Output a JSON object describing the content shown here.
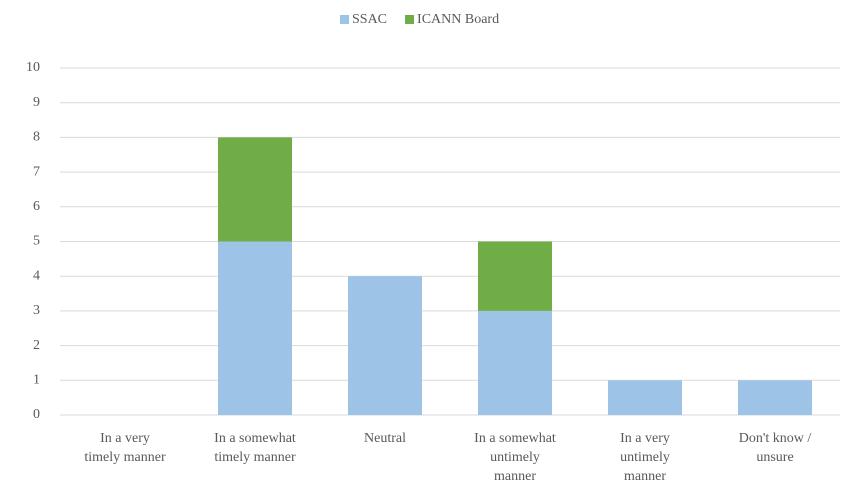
{
  "chart_data": {
    "type": "stacked_bar",
    "categories": [
      "In a very timely manner",
      "In a somewhat timely manner",
      "Neutral",
      "In a somewhat untimely manner",
      "In a very untimely manner",
      "Don't know / unsure"
    ],
    "series": [
      {
        "name": "SSAC",
        "color": "#9dc3e6",
        "values": [
          0,
          5,
          4,
          3,
          1,
          1
        ]
      },
      {
        "name": "ICANN Board",
        "color": "#70ad47",
        "values": [
          0,
          3,
          0,
          2,
          0,
          0
        ]
      }
    ],
    "ylim": [
      0,
      10
    ],
    "yticks": [
      0,
      1,
      2,
      3,
      4,
      5,
      6,
      7,
      8,
      9,
      10
    ],
    "grid": true,
    "legend": "top"
  }
}
